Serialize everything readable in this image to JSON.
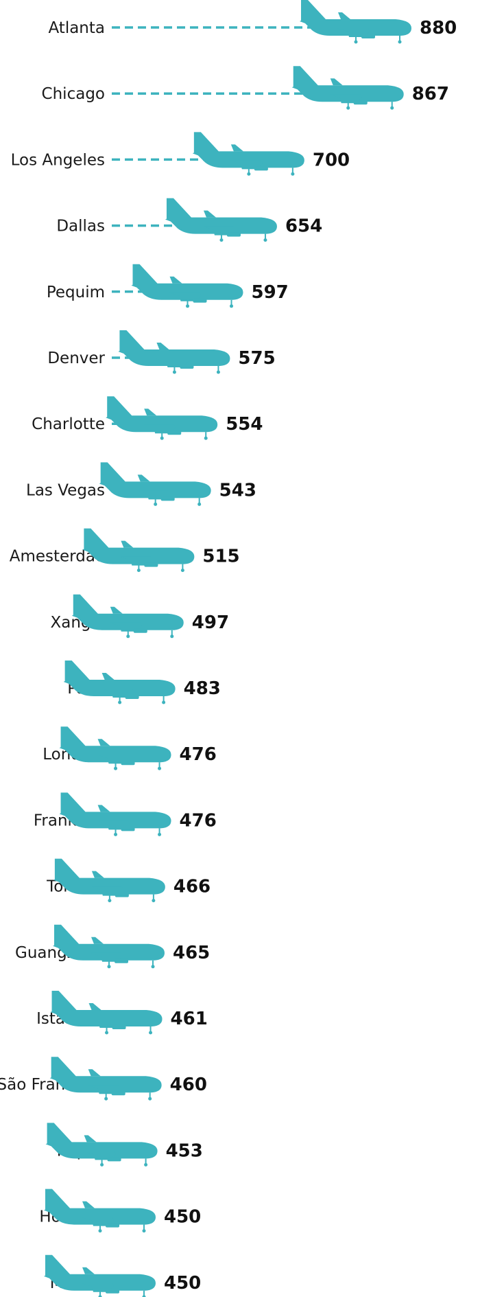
{
  "colors": {
    "plane": "#3db3be",
    "dash": "#3db3be",
    "label": "#1a1a1a",
    "value": "#111111"
  },
  "icons": {
    "marker": "airplane-icon"
  },
  "chart_data": {
    "type": "bar",
    "orientation": "horizontal",
    "marker": "airplane-icon",
    "grid": false,
    "legend": "none",
    "xlim": [
      0,
      880
    ],
    "categories": [
      "Atlanta",
      "Chicago",
      "Los Angeles",
      "Dallas",
      "Pequim",
      "Denver",
      "Charlotte",
      "Las Vegas",
      "Amesterdão",
      "Xangai",
      "Paris",
      "Londres",
      "Frankfurt",
      "Toronto",
      "Guangzhou",
      "Istambul",
      "São Francisco",
      "Tóquio",
      "Houston",
      "México"
    ],
    "values": [
      880,
      867,
      700,
      654,
      597,
      575,
      554,
      543,
      515,
      497,
      483,
      476,
      476,
      466,
      465,
      461,
      460,
      453,
      450,
      450
    ]
  }
}
